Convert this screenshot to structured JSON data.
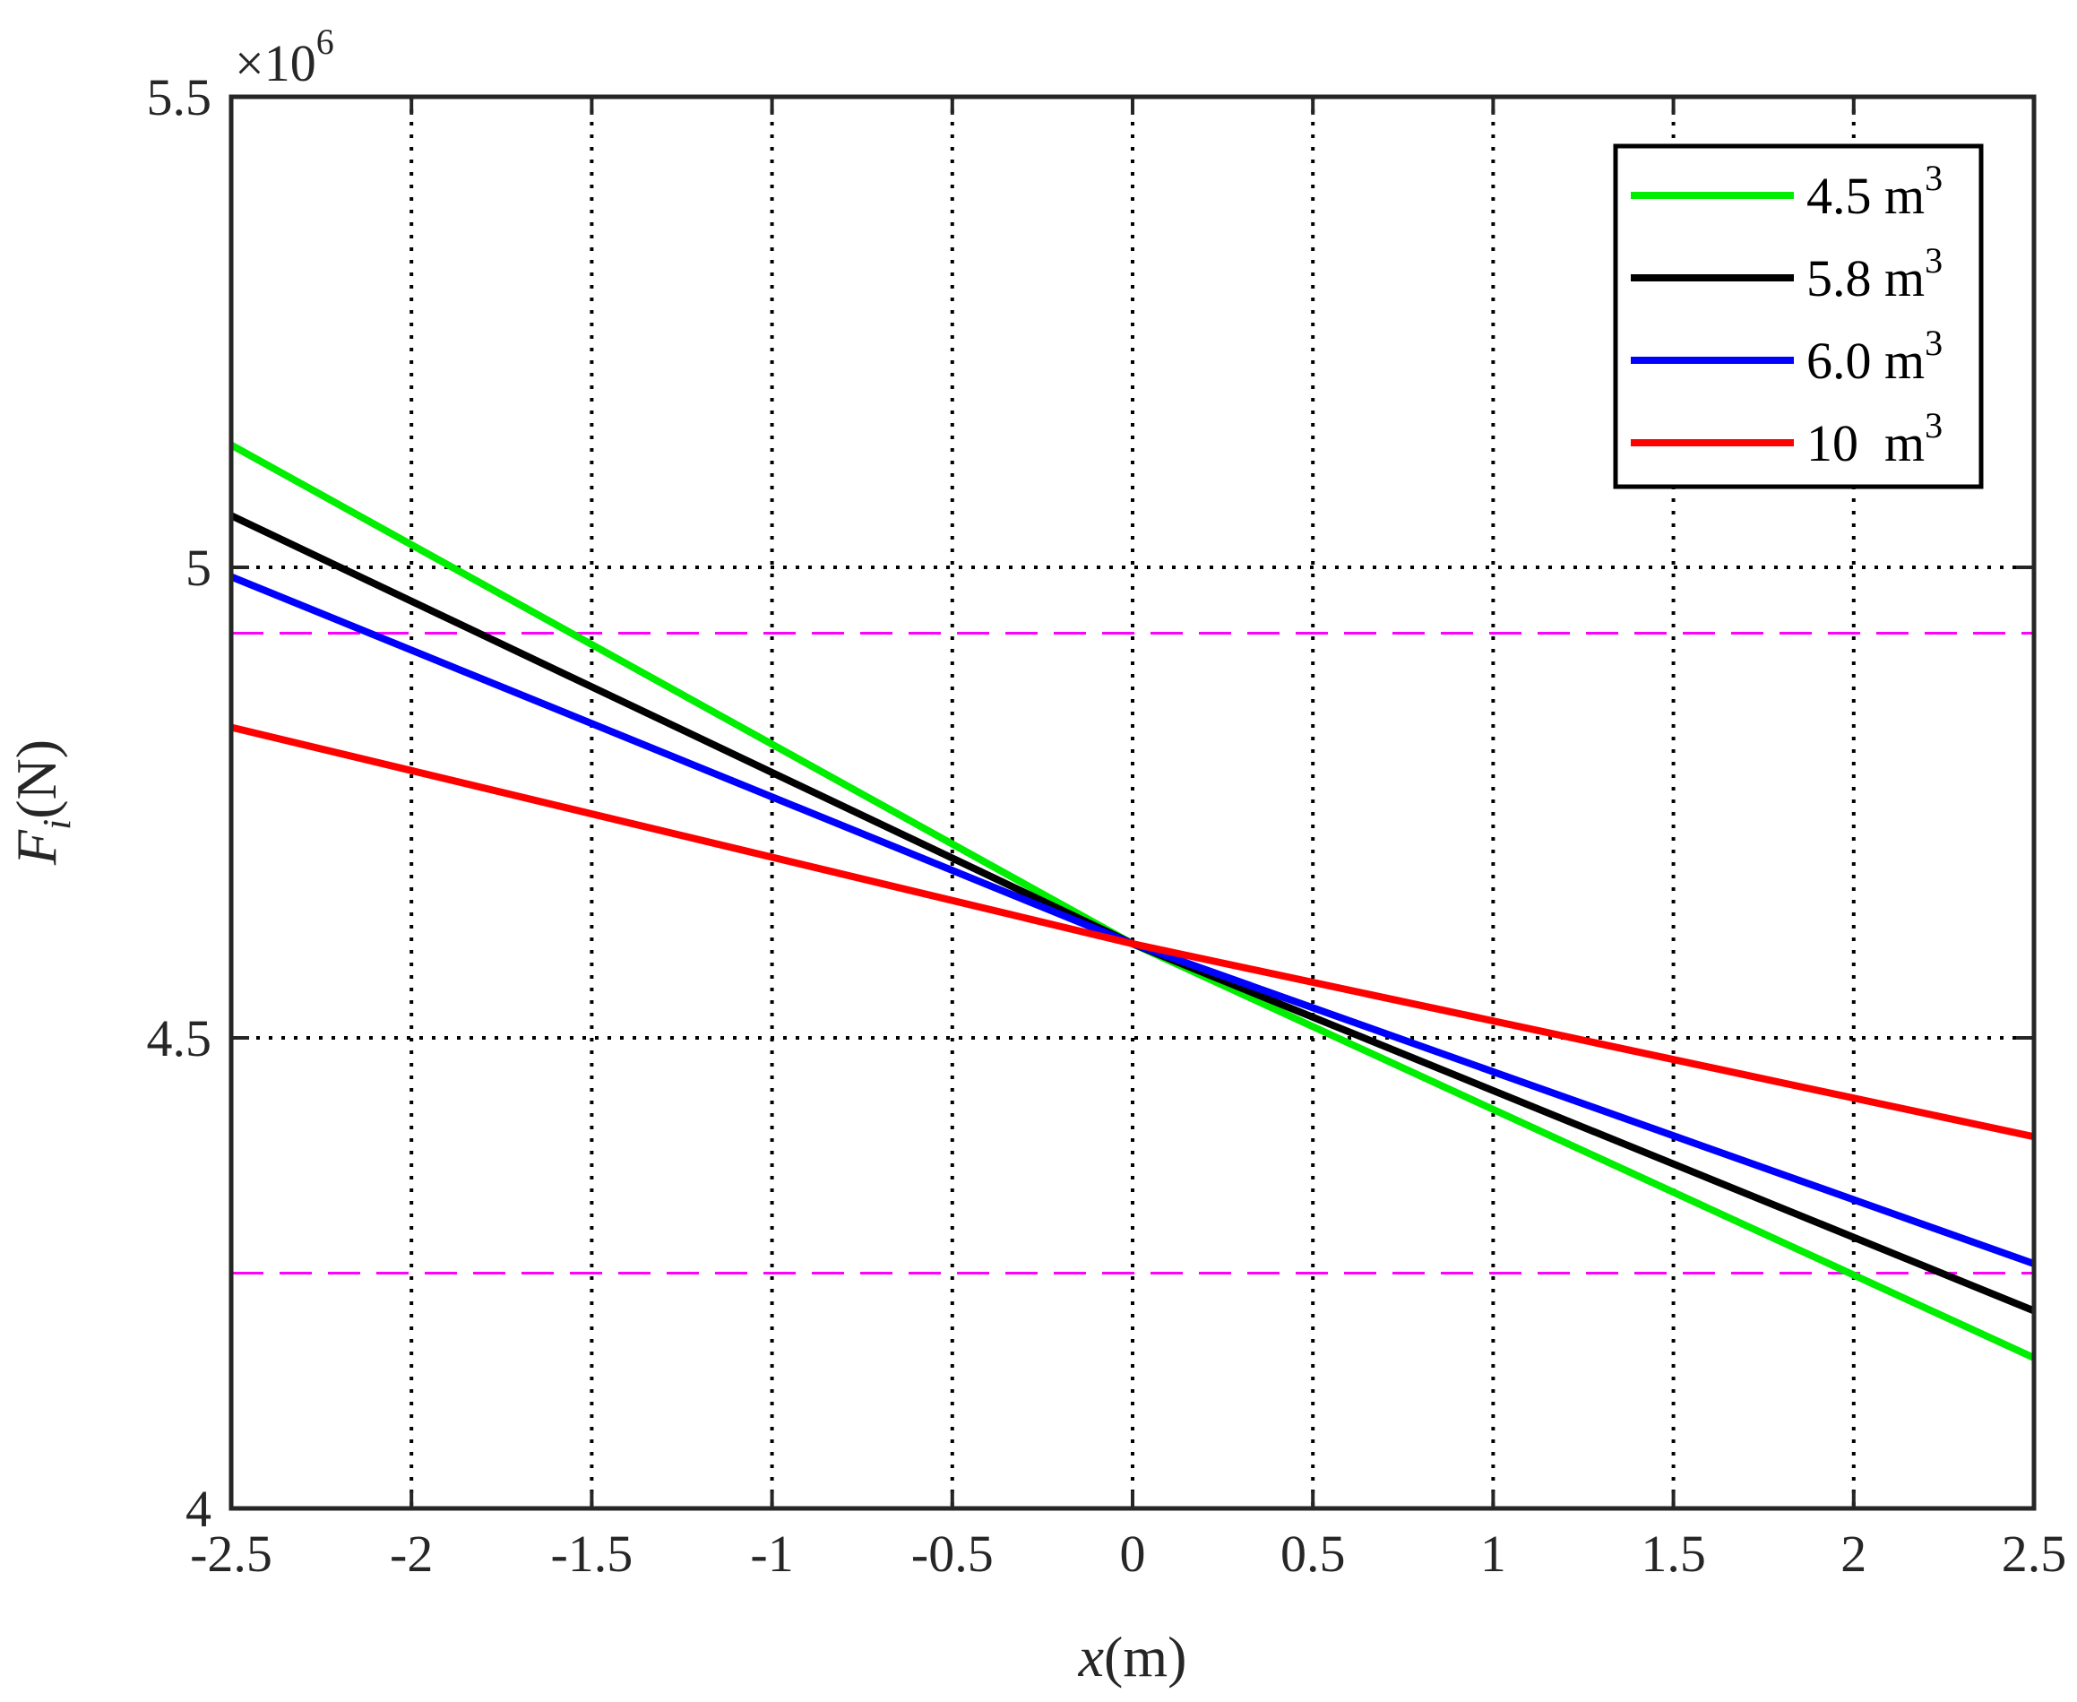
{
  "chart_data": {
    "type": "line",
    "title": "",
    "xlabel": {
      "italic": "x",
      "rest": "(m)"
    },
    "ylabel": {
      "italic": "F",
      "subscript": "i",
      "rest": "(N)"
    },
    "exponent": {
      "base": "×10",
      "power": "6"
    },
    "xlim": [
      -2.5,
      2.5
    ],
    "ylim": [
      4.0,
      5.5
    ],
    "xticks": [
      -2.5,
      -2,
      -1.5,
      -1,
      -0.5,
      0,
      0.5,
      1,
      1.5,
      2,
      2.5
    ],
    "xtick_labels": [
      "-2.5",
      "-2",
      "-1.5",
      "-1",
      "-0.5",
      "0",
      "0.5",
      "1",
      "1.5",
      "2",
      "2.5"
    ],
    "yticks": [
      4.0,
      4.5,
      5.0,
      5.5
    ],
    "ytick_labels": [
      "4",
      "4.5",
      "5",
      "5.5"
    ],
    "grid": true,
    "grid_style": "dotted",
    "legend_position": "top-right",
    "series": [
      {
        "name": "4.5 m",
        "unit_power": "3",
        "color": "#00ee00",
        "x": [
          -2.5,
          0,
          2.5
        ],
        "y": [
          5.13,
          4.6,
          4.16
        ]
      },
      {
        "name": "5.8 m",
        "unit_power": "3",
        "color": "#000000",
        "x": [
          -2.5,
          0,
          2.5
        ],
        "y": [
          5.055,
          4.6,
          4.21
        ]
      },
      {
        "name": "6.0 m",
        "unit_power": "3",
        "color": "#0000ff",
        "x": [
          -2.5,
          0,
          2.5
        ],
        "y": [
          4.99,
          4.6,
          4.26
        ]
      },
      {
        "name": "10  m",
        "unit_power": "3",
        "color": "#ff0000",
        "x": [
          -2.5,
          0,
          2.5
        ],
        "y": [
          4.83,
          4.6,
          4.395
        ]
      }
    ],
    "reference_lines": [
      {
        "y": 4.93,
        "color": "#ff00ff",
        "style": "dashed"
      },
      {
        "y": 4.25,
        "color": "#ff00ff",
        "style": "dashed"
      }
    ]
  }
}
